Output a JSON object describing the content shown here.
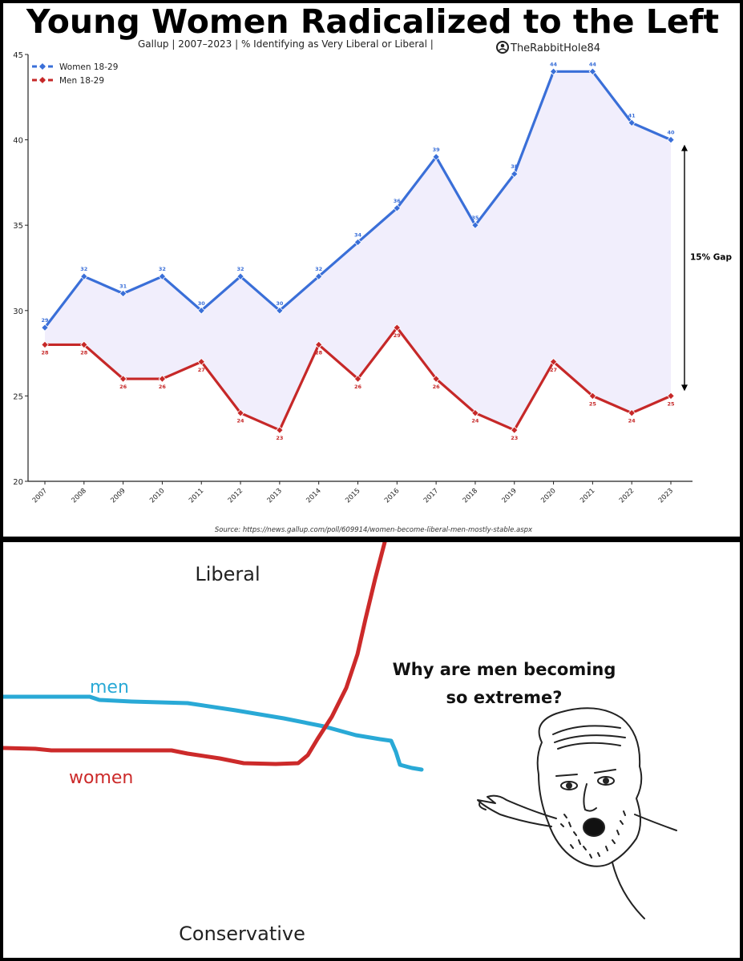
{
  "chart_data": {
    "type": "line",
    "title": "Young Women Radicalized to the Left",
    "subtitle": "Gallup | 2007–2023  |  % Identifying as Very Liberal or Liberal |",
    "credit": "TheRabbitHole84",
    "source": "Source: https://news.gallup.com/poll/609914/women-become-liberal-men-mostly-stable.aspx",
    "x": [
      "2007",
      "2008",
      "2009",
      "2010",
      "2011",
      "2012",
      "2013",
      "2014",
      "2015",
      "2016",
      "2017",
      "2018",
      "2019",
      "2020",
      "2021",
      "2022",
      "2023"
    ],
    "ylim": [
      20,
      45
    ],
    "yticks": [
      "20",
      "25",
      "30",
      "35",
      "40",
      "45"
    ],
    "series": [
      {
        "name": "Women 18-29",
        "color": "#3a6fd8",
        "values": [
          29,
          32,
          31,
          32,
          30,
          32,
          30,
          32,
          34,
          36,
          39,
          35,
          38,
          44,
          44,
          41,
          40
        ],
        "labels": [
          "29",
          "32",
          "31",
          "32",
          "30",
          "32",
          "30",
          "32",
          "34",
          "36",
          "39",
          "35",
          "38",
          "44",
          "44",
          "41",
          "40"
        ]
      },
      {
        "name": "Men 18-29",
        "color": "#c62828",
        "values": [
          28,
          28,
          26,
          26,
          27,
          24,
          23,
          28,
          26,
          29,
          26,
          24,
          23,
          27,
          25,
          24,
          25
        ],
        "labels": [
          "28",
          "28",
          "26",
          "26",
          "27",
          "24",
          "23",
          "28",
          "26",
          "29",
          "26",
          "24",
          "23",
          "27",
          "25",
          "24",
          "25"
        ]
      }
    ],
    "annotation": "15% Gap",
    "fill_color": "#f1eefc",
    "legend": "top-left",
    "grid": false
  },
  "comic": {
    "top_label": "Liberal",
    "bottom_label": "Conservative",
    "men_label": "men",
    "women_label": "women",
    "speech_line1": "Why are men becoming",
    "speech_line2": "so extreme?",
    "men_color": "#29a9d6",
    "women_color": "#cc2a2a",
    "face_icon": "wojak-pointing-icon"
  }
}
